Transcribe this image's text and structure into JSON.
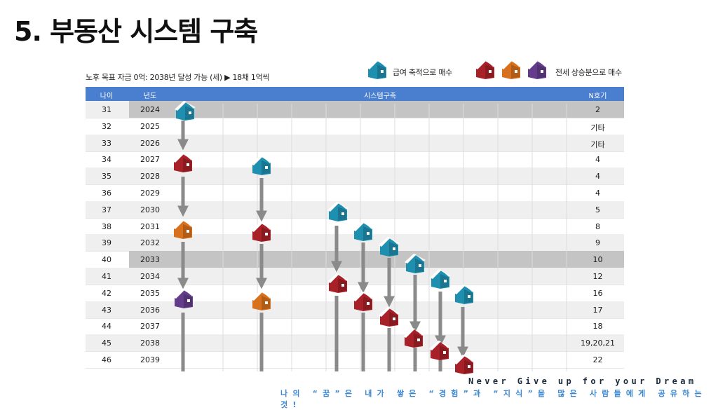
{
  "title": "5. 부동산 시스템 구축",
  "subtitle": "노후 목표 자금 0억: 2038년 달성 가능 (세) ▶ 18채 1억씩",
  "legend": {
    "salary_label": "급여 축적으로 매수",
    "jeonse_label": "전세 상승분으로 매수"
  },
  "colors": {
    "header": "#4a7fd0",
    "teal": "#1f8fb0",
    "red": "#a82028",
    "orange": "#d8711d",
    "purple": "#643c8c",
    "arrow": "#8a8a8a",
    "motto": "#3a86d0"
  },
  "table": {
    "headers": {
      "age": "나이",
      "year": "년도",
      "system": "시스템구축",
      "count": "N호기"
    },
    "rows": [
      {
        "age": "31",
        "year": "2024",
        "n": "2"
      },
      {
        "age": "32",
        "year": "2025",
        "n": "기타"
      },
      {
        "age": "33",
        "year": "2026",
        "n": "기타"
      },
      {
        "age": "34",
        "year": "2027",
        "n": "4"
      },
      {
        "age": "35",
        "year": "2028",
        "n": "4"
      },
      {
        "age": "36",
        "year": "2029",
        "n": "4"
      },
      {
        "age": "37",
        "year": "2030",
        "n": "5"
      },
      {
        "age": "38",
        "year": "2031",
        "n": "8"
      },
      {
        "age": "39",
        "year": "2032",
        "n": "9"
      },
      {
        "age": "40",
        "year": "2033",
        "n": "10"
      },
      {
        "age": "41",
        "year": "2034",
        "n": "12"
      },
      {
        "age": "42",
        "year": "2035",
        "n": "16"
      },
      {
        "age": "43",
        "year": "2036",
        "n": "17"
      },
      {
        "age": "44",
        "year": "2037",
        "n": "18"
      },
      {
        "age": "45",
        "year": "2038",
        "n": "19,20,21"
      },
      {
        "age": "46",
        "year": "2039",
        "n": "22"
      }
    ]
  },
  "footer": {
    "motto_en": "Never Give up for your Dream",
    "motto_ko": "나의 “꿈”은 내가 쌓은 “경험”과 “지식”을 많은 사람들에게 공유하는 것!"
  }
}
